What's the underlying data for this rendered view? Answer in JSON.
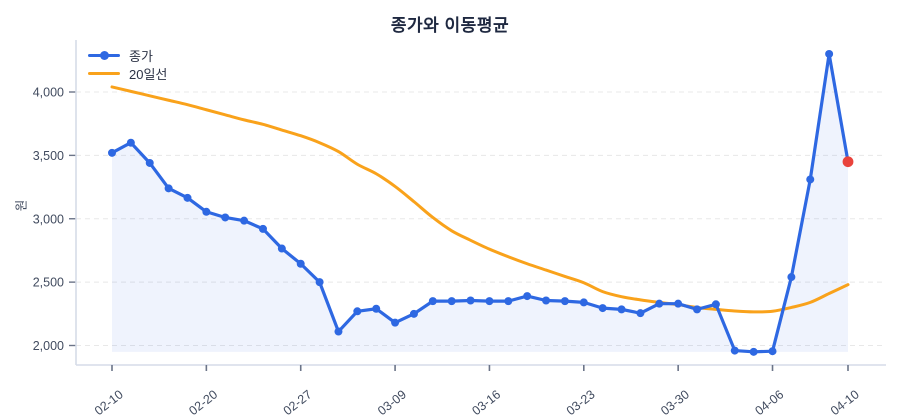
{
  "header": {
    "title": "종가와 이동평균"
  },
  "chart_data": {
    "type": "line",
    "title": "종가와 이동평균",
    "xlabel": "",
    "ylabel": "원",
    "grid": "horizontal-dashed",
    "legend_position": "top-left",
    "n_points": 40,
    "x_tick_labels": [
      "02-10",
      "02-20",
      "02-27",
      "03-09",
      "03-16",
      "03-23",
      "03-30",
      "04-06",
      "04-10"
    ],
    "x_tick_indices": [
      0,
      5,
      10,
      15,
      20,
      25,
      30,
      35,
      39
    ],
    "y_ticks": [
      {
        "value": 2000,
        "label": "2,000"
      },
      {
        "value": 2500,
        "label": "2,500"
      },
      {
        "value": 3000,
        "label": "3,000"
      },
      {
        "value": 3500,
        "label": "3,500"
      },
      {
        "value": 4000,
        "label": "4,000"
      }
    ],
    "ylim": [
      1850,
      4410
    ],
    "series": [
      {
        "name": "종가",
        "color": "#2e68e2",
        "marker": true,
        "area_fill": true,
        "fill_color": "rgba(46,104,226,0.08)",
        "values": [
          3520,
          3600,
          3440,
          3240,
          3165,
          3055,
          3010,
          2985,
          2920,
          2765,
          2645,
          2500,
          2110,
          2270,
          2290,
          2180,
          2250,
          2350,
          2350,
          2355,
          2350,
          2350,
          2390,
          2355,
          2350,
          2340,
          2295,
          2285,
          2255,
          2330,
          2330,
          2285,
          2325,
          1960,
          1950,
          1955,
          2540,
          3310,
          4300,
          3450
        ]
      },
      {
        "name": "20일선",
        "color": "#f9a21b",
        "marker": false,
        "area_fill": false,
        "values": [
          4040,
          4005,
          3970,
          3935,
          3900,
          3860,
          3820,
          3780,
          3745,
          3700,
          3655,
          3600,
          3530,
          3430,
          3355,
          3255,
          3135,
          3010,
          2905,
          2830,
          2760,
          2700,
          2645,
          2595,
          2545,
          2495,
          2425,
          2385,
          2360,
          2340,
          2322,
          2300,
          2285,
          2272,
          2265,
          2270,
          2300,
          2340,
          2410,
          2480
        ]
      }
    ],
    "last_point": {
      "index": 39,
      "value": 3450,
      "color": "#e9433c"
    },
    "colors": {
      "grid": "#e8e8e8",
      "axis": "#d6dce8",
      "tick_text": "#414b5f",
      "title_text": "#1e2840"
    }
  }
}
